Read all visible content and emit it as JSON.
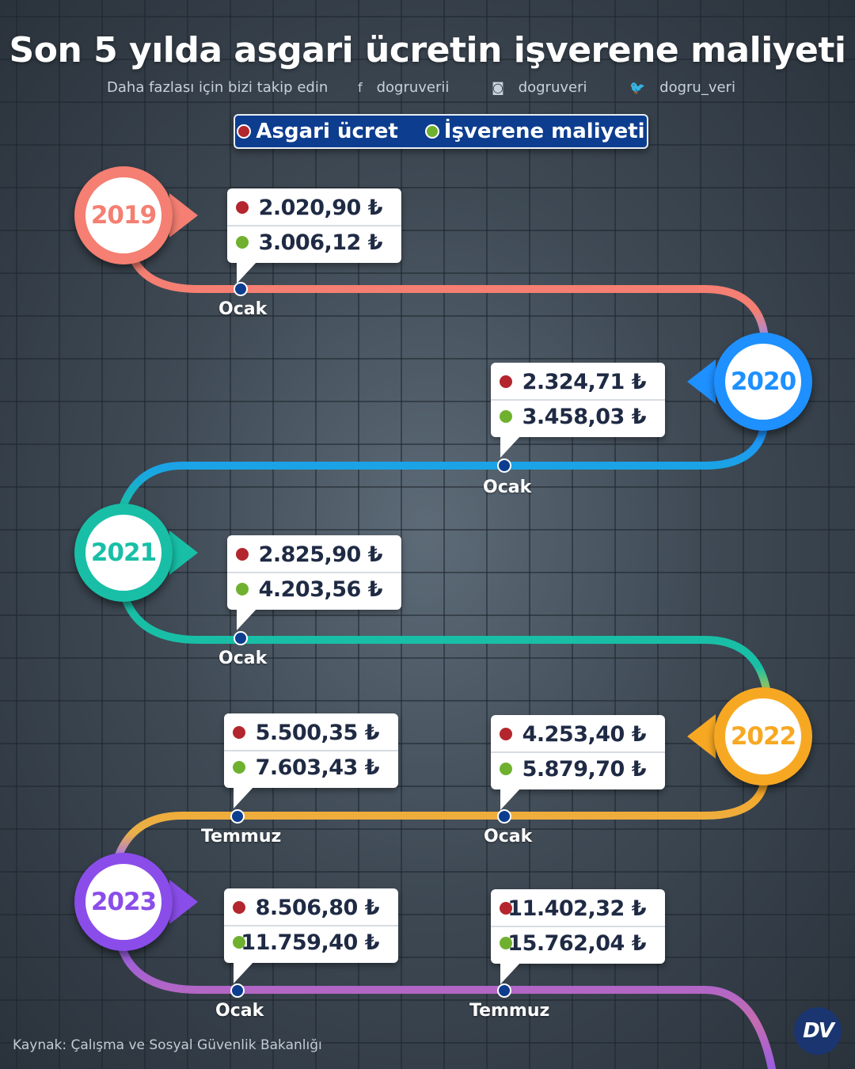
{
  "title": "Son 5 yılda asgari ücretin işverene maliyeti",
  "social": {
    "follow_text": "Daha fazlası için bizi takip edin",
    "facebook": "dogruverii",
    "instagram": "dogruveri",
    "twitter": "dogru_veri"
  },
  "legend": {
    "minimum_wage": "Asgari ücret",
    "employer_cost": "İşverene maliyeti"
  },
  "colors": {
    "minimum_wage_dot": "#b3262d",
    "employer_cost_dot": "#6fb12f",
    "y2019": "#f47f72",
    "y2020": "#1e90ff",
    "y2021": "#18bfa6",
    "y2022": "#f7a823",
    "y2023": "#8a4dea"
  },
  "years": [
    {
      "label": "2019",
      "color": "#f47f72"
    },
    {
      "label": "2020",
      "color": "#1e90ff"
    },
    {
      "label": "2021",
      "color": "#18bfa6"
    },
    {
      "label": "2022",
      "color": "#f7a823"
    },
    {
      "label": "2023",
      "color": "#8a4dea"
    }
  ],
  "entries": [
    {
      "year": "2019",
      "month": "Ocak",
      "wage": "2.020,90 ₺",
      "cost": "3.006,12 ₺"
    },
    {
      "year": "2020",
      "month": "Ocak",
      "wage": "2.324,71 ₺",
      "cost": "3.458,03 ₺"
    },
    {
      "year": "2021",
      "month": "Ocak",
      "wage": "2.825,90 ₺",
      "cost": "4.203,56 ₺"
    },
    {
      "year": "2022",
      "month": "Ocak",
      "wage": "4.253,40 ₺",
      "cost": "5.879,70 ₺"
    },
    {
      "year": "2022",
      "month": "Temmuz",
      "wage": "5.500,35 ₺",
      "cost": "7.603,43 ₺"
    },
    {
      "year": "2023",
      "month": "Ocak",
      "wage": "8.506,80 ₺",
      "cost": "11.759,40 ₺"
    },
    {
      "year": "2023",
      "month": "Temmuz",
      "wage": "11.402,32 ₺",
      "cost": "15.762,04 ₺"
    }
  ],
  "source": "Kaynak: Çalışma ve Sosyal Güvenlik Bakanlığı",
  "logo_text": "DV"
}
